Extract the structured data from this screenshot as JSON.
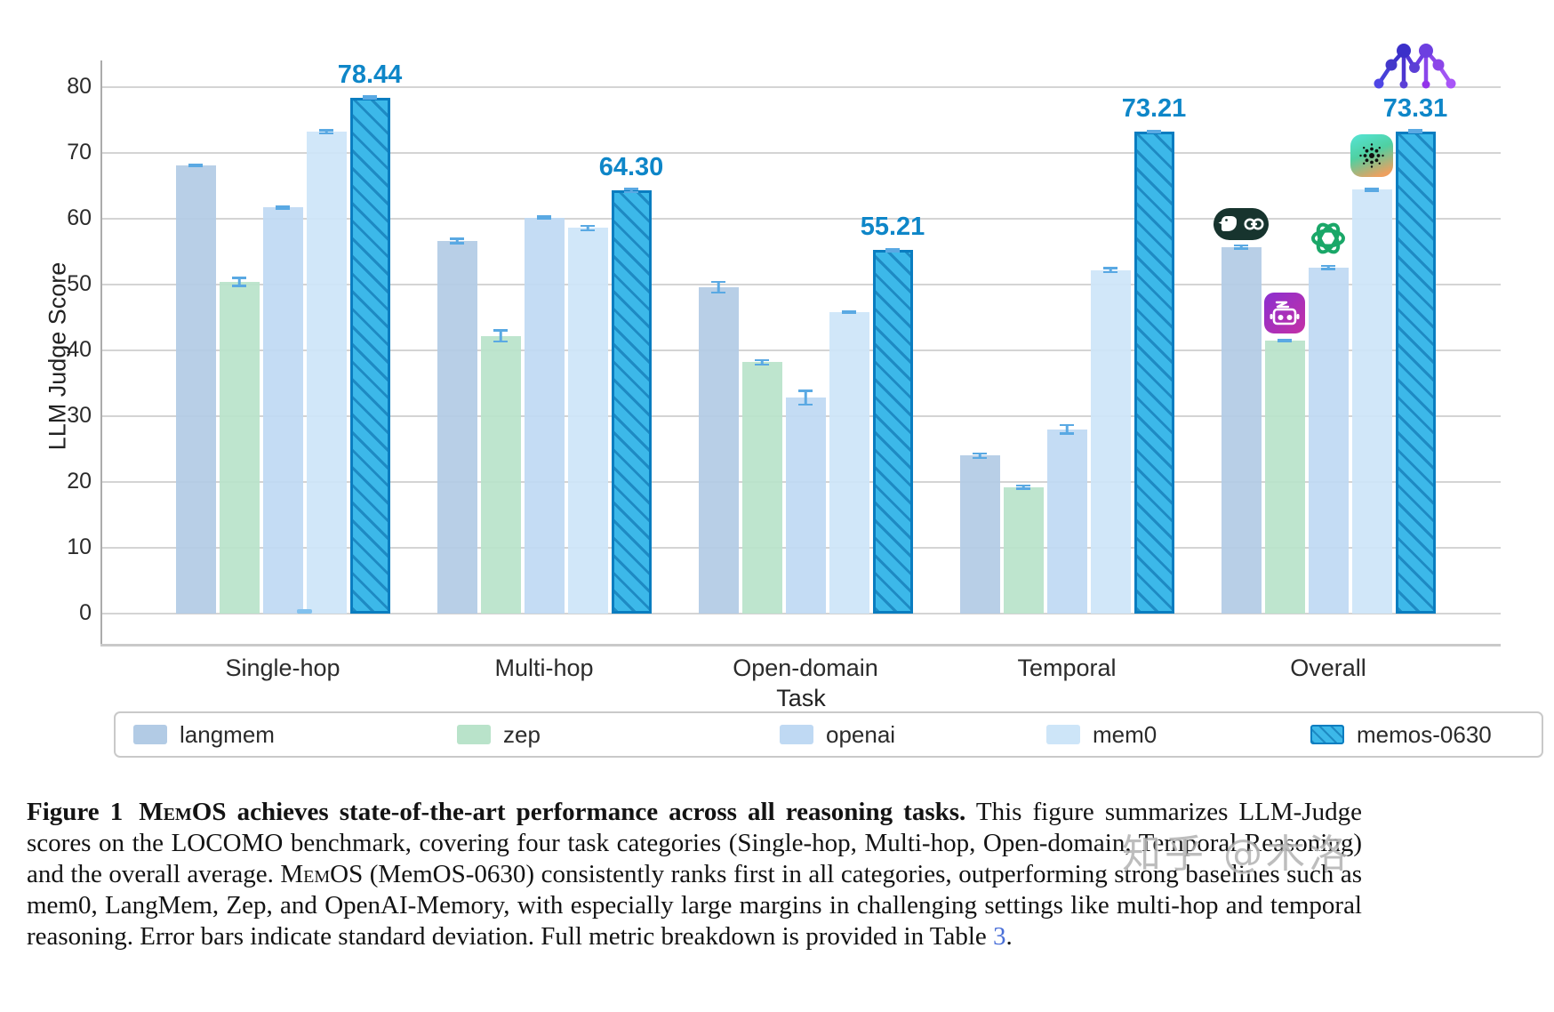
{
  "chart_data": {
    "type": "bar",
    "title": "",
    "xlabel": "Task",
    "ylabel": "LLM Judge Score",
    "ylim": [
      0,
      80
    ],
    "yticks": [
      0,
      10,
      20,
      30,
      40,
      50,
      60,
      70,
      80
    ],
    "grid": true,
    "legend_position": "bottom",
    "categories": [
      "Single-hop",
      "Multi-hop",
      "Open-domain",
      "Temporal",
      "Overall"
    ],
    "series": [
      {
        "name": "langmem",
        "color": "#b2cbe5",
        "values": [
          68.1,
          56.6,
          49.6,
          24.0,
          55.7
        ],
        "errors": [
          0.3,
          0.5,
          1.0,
          0.5,
          0.4
        ]
      },
      {
        "name": "zep",
        "color": "#b9e3ca",
        "values": [
          50.4,
          42.2,
          38.2,
          19.2,
          41.5
        ],
        "errors": [
          0.8,
          1.0,
          0.5,
          0.4,
          0.3
        ]
      },
      {
        "name": "openai",
        "color": "#bfd9f3",
        "values": [
          61.7,
          60.2,
          32.8,
          28.0,
          52.6
        ],
        "errors": [
          0.3,
          0.3,
          1.2,
          0.8,
          0.4
        ]
      },
      {
        "name": "mem0",
        "color": "#cde5f8",
        "values": [
          73.2,
          58.6,
          45.8,
          52.2,
          64.4
        ],
        "errors": [
          0.4,
          0.5,
          0.3,
          0.5,
          0.3
        ]
      },
      {
        "name": "memos-0630",
        "color": "#3cb8e9",
        "hatched": true,
        "border_color": "#0a7dc0",
        "values": [
          78.44,
          64.3,
          55.21,
          73.21,
          73.31
        ],
        "errors": [
          0.3,
          0.4,
          0.3,
          0.3,
          0.3
        ],
        "bar_labels": [
          "78.44",
          "64.30",
          "55.21",
          "73.21",
          "73.31"
        ]
      }
    ],
    "bar_label_color": "#0e86c8",
    "stray_mark": {
      "category": "Single-hop",
      "note": "tiny tick at 0 between openai and mem0 bars"
    },
    "overall_icons": [
      "langmem-logo",
      "zep-logo",
      "openai-logo",
      "mem0-logo",
      "memos-logo"
    ]
  },
  "figure": {
    "watermark": "知乎 @木洛"
  },
  "caption": {
    "segments": [
      {
        "t": "Figure 1",
        "s": "bold-label"
      },
      {
        "t": "MemOS",
        "s": "bold-sc"
      },
      {
        "t": " achieves state-of-the-art performance across all reasoning tasks.",
        "s": "bold"
      },
      {
        "t": " This figure summarizes LLM-Judge scores on the LOCOMO benchmark, covering four task categories (Single-hop, Multi-hop, Open-domain, Temporal Reasoning) and the overall average. ",
        "s": "plain"
      },
      {
        "t": "MemOS",
        "s": "sc"
      },
      {
        "t": " (MemOS-0630) consistently ranks first in all categories, outperforming strong baselines such as mem0, LangMem, Zep, and OpenAI-Memory, with especially large margins in challenging settings like multi-hop and temporal reasoning. Error bars indicate standard deviation. Full metric breakdown is provided in Table ",
        "s": "plain"
      },
      {
        "t": "3",
        "s": "link"
      },
      {
        "t": ".",
        "s": "plain"
      }
    ]
  }
}
